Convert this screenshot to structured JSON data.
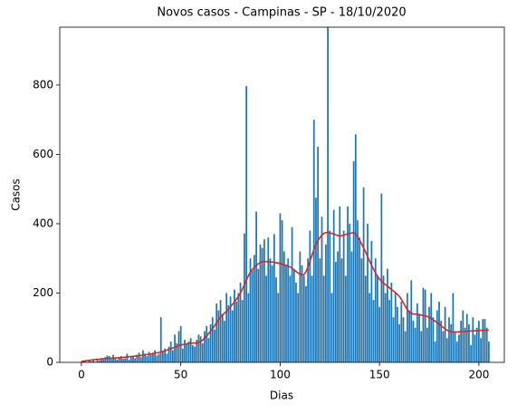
{
  "chart_data": {
    "type": "bar",
    "title": "Novos casos - Campinas - SP - 18/10/2020",
    "xlabel": "Dias",
    "ylabel": "Casos",
    "xlim": [
      -10.9,
      212.8
    ],
    "ylim": [
      0,
      967
    ],
    "xticks": [
      0,
      50,
      100,
      150,
      200
    ],
    "yticks": [
      0,
      200,
      400,
      600,
      800
    ],
    "series": [
      {
        "type": "bar",
        "color": "#1f77b4",
        "x": [
          0,
          1,
          2,
          3,
          4,
          5,
          6,
          7,
          8,
          9,
          10,
          11,
          12,
          13,
          14,
          15,
          16,
          17,
          18,
          19,
          20,
          21,
          22,
          23,
          24,
          25,
          26,
          27,
          28,
          29,
          30,
          31,
          32,
          33,
          34,
          35,
          36,
          37,
          38,
          39,
          40,
          41,
          42,
          43,
          44,
          45,
          46,
          47,
          48,
          49,
          50,
          51,
          52,
          53,
          54,
          55,
          56,
          57,
          58,
          59,
          60,
          61,
          62,
          63,
          64,
          65,
          66,
          67,
          68,
          69,
          70,
          71,
          72,
          73,
          74,
          75,
          76,
          77,
          78,
          79,
          80,
          81,
          82,
          83,
          84,
          85,
          86,
          87,
          88,
          89,
          90,
          91,
          92,
          93,
          94,
          95,
          96,
          97,
          98,
          99,
          100,
          101,
          102,
          103,
          104,
          105,
          106,
          107,
          108,
          109,
          110,
          111,
          112,
          113,
          114,
          115,
          116,
          117,
          118,
          119,
          120,
          121,
          122,
          123,
          124,
          125,
          126,
          127,
          128,
          129,
          130,
          131,
          132,
          133,
          134,
          135,
          136,
          137,
          138,
          139,
          140,
          141,
          142,
          143,
          144,
          145,
          146,
          147,
          148,
          149,
          150,
          151,
          152,
          153,
          154,
          155,
          156,
          157,
          158,
          159,
          160,
          161,
          162,
          163,
          164,
          165,
          166,
          167,
          168,
          169,
          170,
          171,
          172,
          173,
          174,
          175,
          176,
          177,
          178,
          179,
          180,
          181,
          182,
          183,
          184,
          185,
          186,
          187,
          188,
          189,
          190,
          191,
          192,
          193,
          194,
          195,
          196,
          197,
          198,
          199,
          200,
          201,
          202,
          203,
          204,
          205
        ],
        "values": [
          0,
          2,
          3,
          0,
          5,
          3,
          8,
          2,
          10,
          5,
          12,
          8,
          15,
          20,
          18,
          10,
          22,
          12,
          8,
          15,
          18,
          10,
          12,
          25,
          8,
          15,
          20,
          12,
          22,
          28,
          15,
          35,
          25,
          18,
          30,
          22,
          28,
          35,
          20,
          25,
          130,
          30,
          40,
          25,
          45,
          60,
          35,
          80,
          55,
          90,
          105,
          40,
          65,
          55,
          60,
          70,
          50,
          45,
          65,
          80,
          75,
          55,
          90,
          105,
          70,
          110,
          130,
          95,
          170,
          150,
          180,
          140,
          120,
          200,
          165,
          190,
          150,
          210,
          175,
          200,
          230,
          180,
          372,
          797,
          200,
          300,
          265,
          310,
          435,
          270,
          340,
          330,
          355,
          250,
          360,
          300,
          280,
          370,
          245,
          200,
          430,
          410,
          320,
          280,
          300,
          250,
          390,
          270,
          230,
          200,
          320,
          280,
          250,
          220,
          300,
          380,
          250,
          700,
          475,
          622,
          300,
          420,
          250,
          340,
          1000,
          380,
          200,
          440,
          290,
          320,
          450,
          300,
          380,
          250,
          450,
          400,
          320,
          580,
          658,
          410,
          360,
          300,
          505,
          250,
          400,
          200,
          350,
          180,
          300,
          250,
          160,
          487,
          250,
          200,
          270,
          180,
          230,
          130,
          200,
          160,
          110,
          175,
          130,
          90,
          200,
          150,
          237,
          120,
          100,
          170,
          140,
          90,
          215,
          210,
          100,
          160,
          200,
          130,
          60,
          150,
          175,
          120,
          90,
          160,
          70,
          130,
          110,
          200,
          90,
          60,
          80,
          120,
          150,
          100,
          140,
          110,
          50,
          130,
          80,
          100,
          120,
          70,
          125,
          125,
          100,
          60
        ]
      },
      {
        "type": "line",
        "color": "#d62728",
        "x": [
          0,
          10,
          20,
          30,
          40,
          50,
          55,
          60,
          65,
          70,
          75,
          80,
          85,
          90,
          95,
          100,
          105,
          110,
          113,
          118,
          122,
          126,
          130,
          135,
          138,
          142,
          146,
          150,
          155,
          160,
          165,
          170,
          175,
          180,
          185,
          190,
          195,
          200,
          205
        ],
        "values": [
          3,
          10,
          14,
          20,
          30,
          50,
          55,
          60,
          90,
          130,
          160,
          200,
          260,
          288,
          290,
          285,
          275,
          255,
          262,
          340,
          372,
          372,
          365,
          372,
          370,
          330,
          280,
          240,
          215,
          190,
          145,
          138,
          130,
          110,
          90,
          88,
          90,
          92,
          93
        ]
      }
    ]
  }
}
